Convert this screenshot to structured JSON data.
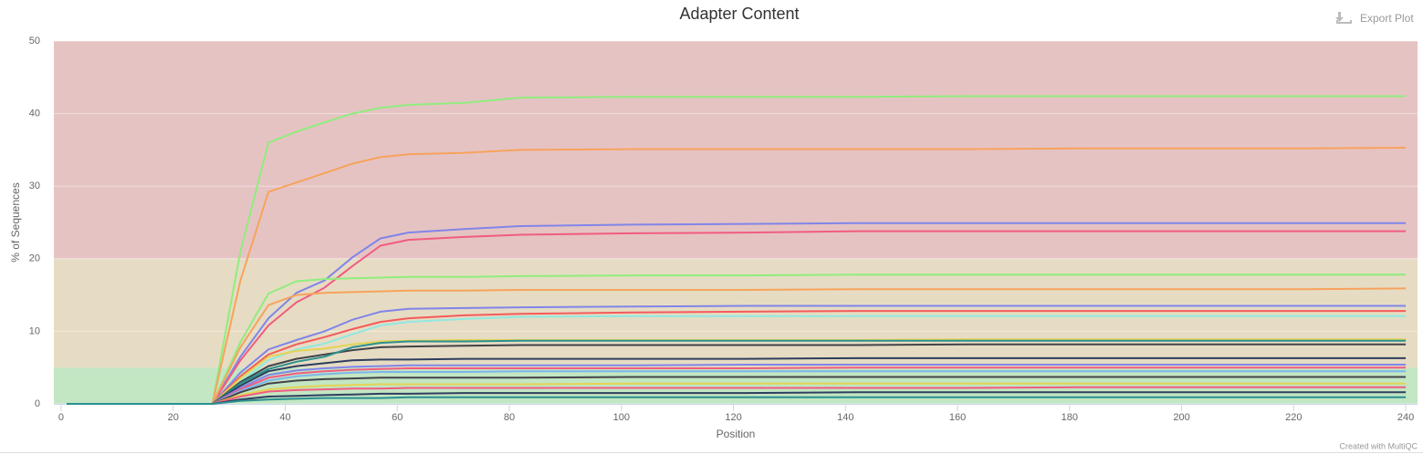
{
  "chart_data": {
    "type": "line",
    "title": "Adapter Content",
    "x_label": "Position",
    "y_label": "% of Sequences",
    "export_label": "Export Plot",
    "credit": "Created with MultiQC",
    "x": [
      1,
      27,
      32,
      37,
      42,
      47,
      52,
      57,
      62,
      72,
      82,
      102,
      122,
      142,
      162,
      182,
      202,
      222,
      240
    ],
    "xlim": [
      -1.3,
      242.1
    ],
    "xticks": [
      0,
      20,
      40,
      60,
      80,
      100,
      120,
      140,
      160,
      180,
      200,
      220,
      240
    ],
    "ylim": [
      0,
      50
    ],
    "yticks": [
      0,
      10,
      20,
      30,
      40,
      50
    ],
    "grid": true,
    "bands": [
      {
        "from": 0,
        "to": 5,
        "color": "#c3e6c3"
      },
      {
        "from": 5,
        "to": 20,
        "color": "#e6dcc3"
      },
      {
        "from": 20,
        "to": 50,
        "color": "#e6c3c3"
      }
    ],
    "series": [
      {
        "color": "#90ed7d",
        "values": [
          0,
          0,
          21,
          36,
          37.5,
          38.8,
          40,
          40.8,
          41.2,
          41.5,
          42.2,
          42.3,
          42.3,
          42.3,
          42.4,
          42.4,
          42.4,
          42.4,
          42.4
        ]
      },
      {
        "color": "#f7a35c",
        "values": [
          0,
          0,
          17,
          29.2,
          30.5,
          31.8,
          33.1,
          34,
          34.4,
          34.6,
          35,
          35.1,
          35.1,
          35.1,
          35.1,
          35.2,
          35.2,
          35.2,
          35.3
        ]
      },
      {
        "color": "#8085e9",
        "values": [
          0,
          0,
          6.5,
          11.8,
          15.3,
          17,
          20.2,
          22.8,
          23.6,
          24.1,
          24.5,
          24.7,
          24.8,
          24.9,
          24.9,
          24.9,
          24.9,
          24.9,
          24.9
        ]
      },
      {
        "color": "#f15c80",
        "values": [
          0,
          0,
          6,
          10.8,
          14,
          16,
          19,
          21.8,
          22.6,
          23,
          23.3,
          23.5,
          23.6,
          23.8,
          23.8,
          23.8,
          23.8,
          23.8,
          23.8
        ]
      },
      {
        "color": "#90ed7d",
        "values": [
          0,
          0,
          8.5,
          15.2,
          16.9,
          17.2,
          17.3,
          17.4,
          17.5,
          17.5,
          17.6,
          17.7,
          17.7,
          17.8,
          17.8,
          17.8,
          17.8,
          17.8,
          17.8
        ]
      },
      {
        "color": "#f7a35c",
        "values": [
          0,
          0,
          7.8,
          13.6,
          15,
          15.3,
          15.4,
          15.5,
          15.6,
          15.6,
          15.7,
          15.7,
          15.7,
          15.8,
          15.8,
          15.8,
          15.8,
          15.8,
          15.9
        ]
      },
      {
        "color": "#8085e9",
        "values": [
          0,
          0,
          4.3,
          7.5,
          8.8,
          10,
          11.6,
          12.7,
          13.1,
          13.2,
          13.3,
          13.4,
          13.5,
          13.5,
          13.5,
          13.5,
          13.5,
          13.5,
          13.5
        ]
      },
      {
        "color": "#f45b5b",
        "values": [
          0,
          0,
          3.8,
          6.8,
          8.2,
          9.2,
          10.3,
          11.3,
          11.8,
          12.2,
          12.4,
          12.6,
          12.7,
          12.8,
          12.8,
          12.8,
          12.8,
          12.8,
          12.8
        ]
      },
      {
        "color": "#91e8e1",
        "values": [
          0,
          0,
          3,
          6,
          7.5,
          8.3,
          9.6,
          10.8,
          11.3,
          11.7,
          12,
          12.1,
          12.1,
          12.1,
          12.1,
          12.1,
          12.1,
          12.1,
          12.1
        ]
      },
      {
        "color": "#e4d354",
        "values": [
          0,
          0,
          3.5,
          6.5,
          7.3,
          7.6,
          8.2,
          8.6,
          8.7,
          8.8,
          8.8,
          8.8,
          8.8,
          8.8,
          8.9,
          8.9,
          8.9,
          8.9,
          8.9
        ]
      },
      {
        "color": "#434348",
        "values": [
          0,
          0,
          3,
          5.2,
          6.2,
          6.8,
          7.4,
          7.8,
          7.9,
          8,
          8.1,
          8.1,
          8.1,
          8.1,
          8.2,
          8.2,
          8.2,
          8.2,
          8.2
        ]
      },
      {
        "color": "#2b908f",
        "values": [
          0,
          0,
          2.8,
          4.8,
          5.8,
          6.5,
          7.8,
          8.4,
          8.6,
          8.6,
          8.7,
          8.7,
          8.7,
          8.7,
          8.7,
          8.7,
          8.7,
          8.7,
          8.7
        ]
      },
      {
        "color": "#2f3e5e",
        "values": [
          0,
          0,
          2.5,
          4.5,
          5.2,
          5.6,
          6,
          6.1,
          6.1,
          6.2,
          6.2,
          6.2,
          6.2,
          6.3,
          6.3,
          6.3,
          6.3,
          6.3,
          6.3
        ]
      },
      {
        "color": "#8085e9",
        "values": [
          0,
          0,
          2.2,
          4,
          4.6,
          4.9,
          5.1,
          5.2,
          5.3,
          5.3,
          5.3,
          5.3,
          5.4,
          5.4,
          5.4,
          5.4,
          5.4,
          5.4,
          5.4
        ]
      },
      {
        "color": "#f15c80",
        "values": [
          0,
          0,
          2,
          3.6,
          4.2,
          4.5,
          4.7,
          4.8,
          4.9,
          4.9,
          4.9,
          4.9,
          4.9,
          5,
          5,
          5,
          5,
          5,
          5
        ]
      },
      {
        "color": "#7cb5ec",
        "values": [
          0,
          0,
          1.8,
          3.2,
          3.8,
          4.1,
          4.3,
          4.4,
          4.4,
          4.4,
          4.5,
          4.5,
          4.5,
          4.5,
          4.5,
          4.5,
          4.5,
          4.5,
          4.5
        ]
      },
      {
        "color": "#434348",
        "values": [
          0,
          0,
          1.6,
          2.8,
          3.2,
          3.4,
          3.5,
          3.6,
          3.6,
          3.6,
          3.6,
          3.7,
          3.7,
          3.7,
          3.7,
          3.7,
          3.7,
          3.7,
          3.7
        ]
      },
      {
        "color": "#e4d354",
        "values": [
          0,
          0,
          1.2,
          2,
          2.3,
          2.5,
          2.6,
          2.7,
          2.7,
          2.7,
          2.7,
          2.8,
          2.8,
          2.8,
          2.8,
          2.8,
          2.8,
          2.8,
          2.8
        ]
      },
      {
        "color": "#f15c80",
        "values": [
          0,
          0,
          1,
          1.7,
          1.9,
          2,
          2.1,
          2.1,
          2.2,
          2.2,
          2.2,
          2.2,
          2.2,
          2.2,
          2.2,
          2.3,
          2.3,
          2.3,
          2.3
        ]
      },
      {
        "color": "#2f3e5e",
        "values": [
          0,
          0,
          0.6,
          1,
          1.1,
          1.2,
          1.3,
          1.4,
          1.4,
          1.5,
          1.5,
          1.5,
          1.5,
          1.6,
          1.6,
          1.6,
          1.6,
          1.6,
          1.6
        ]
      },
      {
        "color": "#2b908f",
        "values": [
          0,
          0,
          0.4,
          0.6,
          0.7,
          0.8,
          0.8,
          0.8,
          0.9,
          0.9,
          0.9,
          0.9,
          0.9,
          0.9,
          0.9,
          0.9,
          0.9,
          0.9,
          0.9
        ]
      }
    ]
  }
}
